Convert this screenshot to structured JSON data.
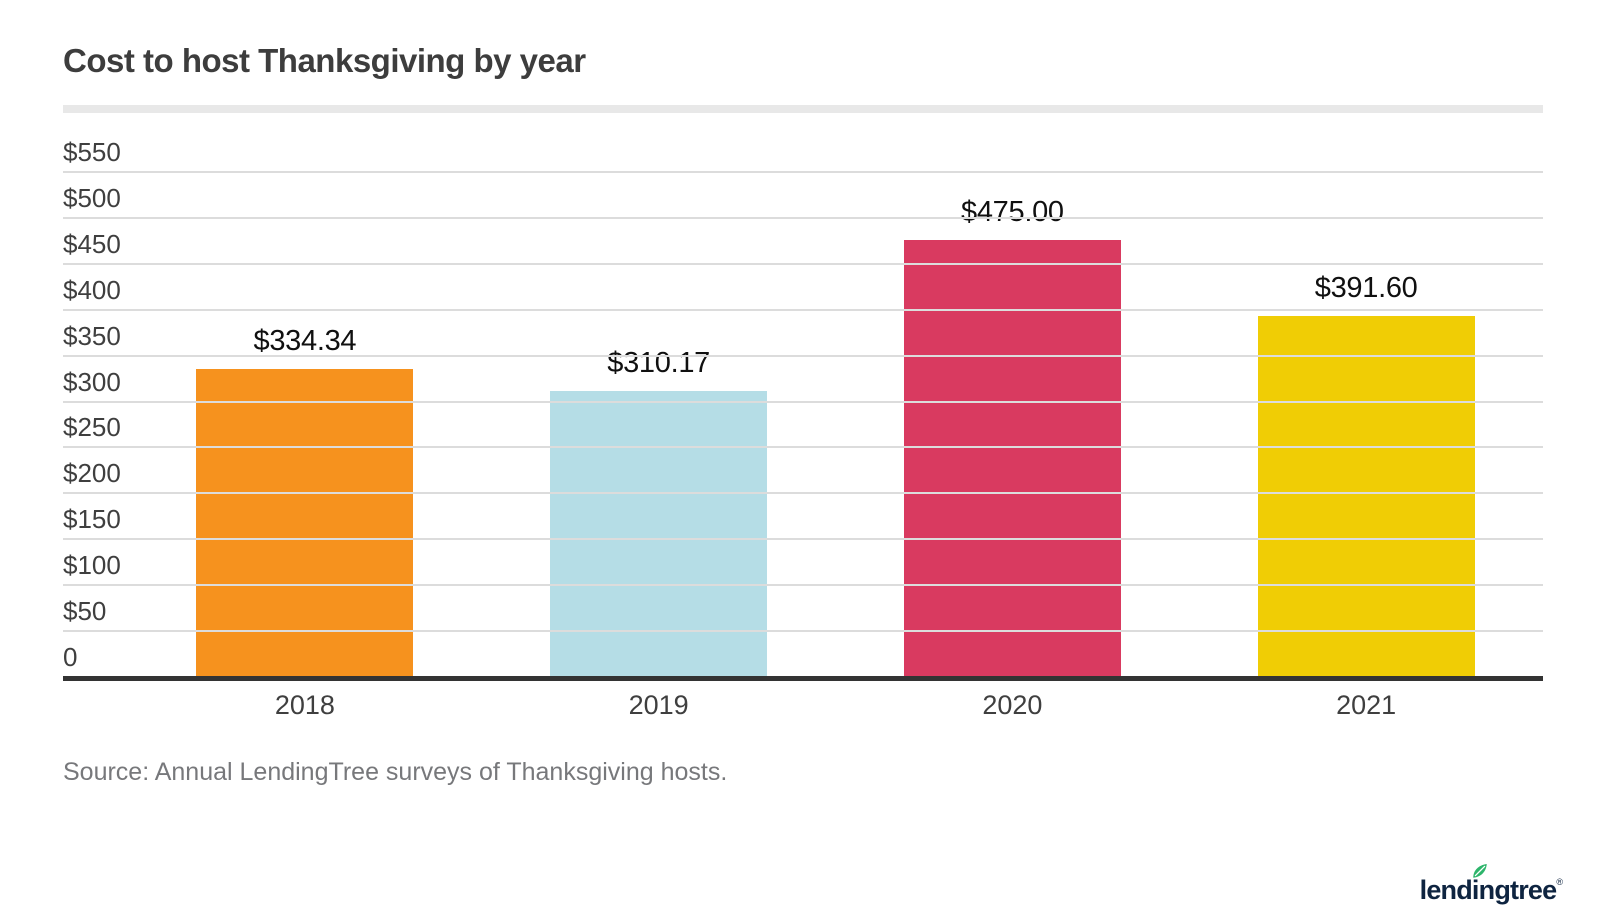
{
  "title": "Cost to host Thanksgiving by year",
  "source_note": "Source: Annual LendingTree surveys of Thanksgiving hosts.",
  "logo": {
    "text": "lendingtree",
    "registered_mark": "®",
    "leaf_icon": "leaf-icon",
    "text_color": "#0e2440",
    "leaf_color": "#2db56b"
  },
  "colors": {
    "title_text": "#3d3d3d",
    "divider": "#e8e8e8",
    "gridline": "#dcdcdc",
    "axis_line": "#333333",
    "tick_text": "#3f3f3f",
    "value_label_text": "#101010",
    "source_text": "#77787b",
    "background": "#ffffff"
  },
  "chart_data": {
    "type": "bar",
    "title": "Cost to host Thanksgiving by year",
    "xlabel": "",
    "ylabel": "",
    "categories": [
      "2018",
      "2019",
      "2020",
      "2021"
    ],
    "values": [
      334.34,
      310.17,
      475.0,
      391.6
    ],
    "value_labels": [
      "$334.34",
      "$310.17",
      "$475.00",
      "$391.60"
    ],
    "bar_colors": [
      "#f6921e",
      "#b5dde6",
      "#d93a60",
      "#f0cd05"
    ],
    "ylim": [
      0,
      550
    ],
    "ytick_interval": 50,
    "yticks": [
      {
        "label": "$550",
        "value": 550
      },
      {
        "label": "$500",
        "value": 500
      },
      {
        "label": "$450",
        "value": 450
      },
      {
        "label": "$400",
        "value": 400
      },
      {
        "label": "$350",
        "value": 350
      },
      {
        "label": "$300",
        "value": 300
      },
      {
        "label": "$250",
        "value": 250
      },
      {
        "label": "$200",
        "value": 200
      },
      {
        "label": "$150",
        "value": 150
      },
      {
        "label": "$100",
        "value": 100
      },
      {
        "label": "$50",
        "value": 50
      },
      {
        "label": "0",
        "value": 0
      }
    ],
    "grid": true,
    "legend": false
  }
}
